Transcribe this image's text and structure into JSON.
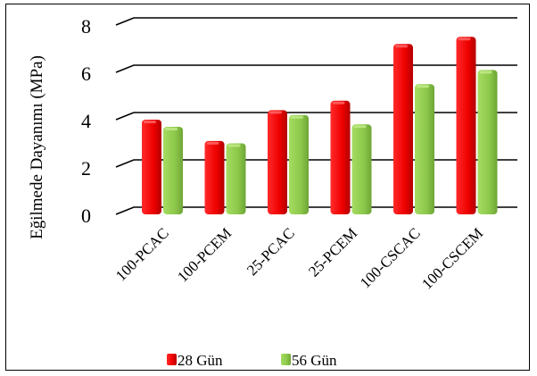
{
  "chart_data": {
    "type": "bar",
    "categories": [
      "100-PCAC",
      "100-PCEM",
      "25-PCAC",
      "25-PCEM",
      "100-CSCAC",
      "100-CSCEM"
    ],
    "series": [
      {
        "name": "28 Gün",
        "values": [
          4.0,
          3.1,
          4.4,
          4.8,
          7.2,
          7.5
        ],
        "color": "#ff0000"
      },
      {
        "name": "56 Gün",
        "values": [
          3.7,
          3.0,
          4.2,
          3.8,
          5.5,
          6.1
        ],
        "color": "#92d050"
      }
    ],
    "ylabel": "Eğilmede Dayanımı (MPa)",
    "xlabel": "",
    "ylim": [
      0,
      8
    ],
    "yticks": [
      0,
      2,
      4,
      6,
      8
    ],
    "grid": true,
    "legend_position": "bottom"
  }
}
